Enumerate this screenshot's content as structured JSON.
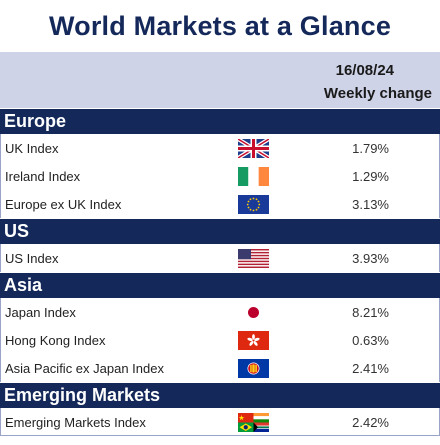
{
  "title": "World Markets at a Glance",
  "date": "16/08/24",
  "column_header": "Weekly change",
  "sections": [
    {
      "name": "Europe",
      "rows": [
        {
          "index": "UK Index",
          "flag": "uk-flag-icon",
          "change": "1.79%"
        },
        {
          "index": "Ireland Index",
          "flag": "ireland-flag-icon",
          "change": "1.29%"
        },
        {
          "index": "Europe ex UK Index",
          "flag": "eu-flag-icon",
          "change": "3.13%"
        }
      ]
    },
    {
      "name": "US",
      "rows": [
        {
          "index": "US Index",
          "flag": "us-flag-icon",
          "change": "3.93%"
        }
      ]
    },
    {
      "name": "Asia",
      "rows": [
        {
          "index": "Japan Index",
          "flag": "japan-flag-icon",
          "change": "8.21%"
        },
        {
          "index": "Hong Kong Index",
          "flag": "hong-kong-flag-icon",
          "change": "0.63%"
        },
        {
          "index": "Asia Pacific ex Japan Index",
          "flag": "asean-flag-icon",
          "change": "2.41%"
        }
      ]
    },
    {
      "name": "Emerging Markets",
      "rows": [
        {
          "index": "Emerging Markets Index",
          "flag": "emerging-markets-flag-icon",
          "change": "2.42%"
        }
      ]
    }
  ],
  "colors": {
    "title": "#14285a",
    "section_header_bg": "#14285a",
    "date_band_bg": "#cfd3e8"
  }
}
